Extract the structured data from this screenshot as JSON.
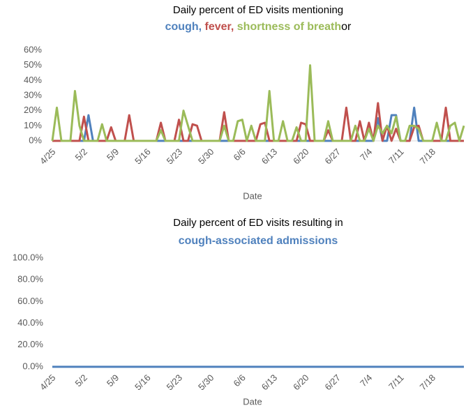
{
  "chart_data": [
    {
      "type": "line",
      "title": "Daily percent of ED visits mentioning",
      "legend_separators": [
        ",",
        ",",
        "or"
      ],
      "x_label": "Date",
      "categories": [
        "4/25",
        null,
        null,
        null,
        null,
        null,
        null,
        "5/2",
        null,
        null,
        null,
        null,
        null,
        null,
        "5/9",
        null,
        null,
        null,
        null,
        null,
        null,
        "5/16",
        null,
        null,
        null,
        null,
        null,
        null,
        "5/23",
        null,
        null,
        null,
        null,
        null,
        null,
        "5/30",
        null,
        null,
        null,
        null,
        null,
        null,
        "6/6",
        null,
        null,
        null,
        null,
        null,
        null,
        "6/13",
        null,
        null,
        null,
        null,
        null,
        null,
        "6/20",
        null,
        null,
        null,
        null,
        null,
        null,
        "6/27",
        null,
        null,
        null,
        null,
        null,
        null,
        "7/4",
        null,
        null,
        null,
        null,
        null,
        null,
        "7/11",
        null,
        null,
        null,
        null,
        null,
        null,
        "7/18",
        null,
        null,
        null,
        null,
        null,
        null,
        null
      ],
      "ylim": [
        0,
        60
      ],
      "yticks": [
        {
          "value": 0,
          "label": "0%"
        },
        {
          "value": 10,
          "label": "10%"
        },
        {
          "value": 20,
          "label": "20%"
        },
        {
          "value": 30,
          "label": "30%"
        },
        {
          "value": 40,
          "label": "40%"
        },
        {
          "value": 50,
          "label": "50%"
        },
        {
          "value": 60,
          "label": "60%"
        }
      ],
      "series": [
        {
          "name": "cough",
          "color": "#4f81bd",
          "values": [
            0,
            0,
            0,
            0,
            0,
            0,
            0,
            0,
            17,
            0,
            0,
            0,
            0,
            0,
            0,
            0,
            0,
            0,
            0,
            0,
            0,
            0,
            0,
            0,
            0,
            0,
            0,
            0,
            0,
            0,
            0,
            0,
            0,
            0,
            0,
            0,
            0,
            0,
            0,
            0,
            0,
            0,
            0,
            0,
            0,
            0,
            0,
            0,
            0,
            0,
            0,
            0,
            0,
            0,
            0,
            0,
            0,
            0,
            0,
            0,
            0,
            0,
            0,
            0,
            0,
            0,
            0,
            0,
            0,
            0,
            0,
            0,
            15,
            0,
            0,
            17,
            17,
            0,
            0,
            0,
            22,
            0,
            0,
            0,
            0,
            0,
            0,
            0,
            0,
            0,
            0,
            0
          ]
        },
        {
          "name": "fever",
          "color": "#c0504d",
          "values": [
            0,
            0,
            0,
            0,
            0,
            0,
            0,
            16,
            0,
            0,
            0,
            0,
            0,
            9,
            0,
            0,
            0,
            17,
            0,
            0,
            0,
            0,
            0,
            0,
            12,
            0,
            0,
            0,
            14,
            0,
            0,
            11,
            10,
            0,
            0,
            0,
            0,
            0,
            19,
            0,
            0,
            0,
            0,
            0,
            0,
            0,
            11,
            12,
            0,
            0,
            0,
            0,
            0,
            0,
            0,
            12,
            11,
            0,
            0,
            0,
            0,
            7,
            0,
            0,
            0,
            22,
            0,
            0,
            13,
            0,
            12,
            0,
            25,
            0,
            10,
            0,
            8,
            0,
            0,
            0,
            9,
            10,
            0,
            0,
            0,
            0,
            0,
            22,
            0,
            0,
            0,
            0
          ]
        },
        {
          "name": "shortness of breath",
          "color": "#9bbb59",
          "values": [
            0,
            22,
            0,
            0,
            0,
            33,
            10,
            0,
            0,
            0,
            0,
            11,
            0,
            0,
            0,
            0,
            0,
            0,
            0,
            0,
            0,
            0,
            0,
            0,
            7,
            0,
            0,
            0,
            0,
            20,
            10,
            0,
            0,
            0,
            0,
            0,
            0,
            0,
            10,
            0,
            0,
            13,
            14,
            0,
            10,
            0,
            0,
            0,
            33,
            0,
            0,
            13,
            0,
            0,
            9,
            0,
            0,
            50,
            0,
            0,
            0,
            13,
            0,
            0,
            0,
            0,
            0,
            10,
            0,
            0,
            8,
            0,
            10,
            5,
            10,
            5,
            16,
            0,
            0,
            10,
            10,
            8,
            0,
            0,
            0,
            12,
            0,
            0,
            10,
            12,
            0,
            10
          ]
        }
      ]
    },
    {
      "type": "line",
      "title": "Daily percent of ED visits resulting in",
      "x_label": "Date",
      "categories": [
        "4/25",
        null,
        null,
        null,
        null,
        null,
        null,
        "5/2",
        null,
        null,
        null,
        null,
        null,
        null,
        "5/9",
        null,
        null,
        null,
        null,
        null,
        null,
        "5/16",
        null,
        null,
        null,
        null,
        null,
        null,
        "5/23",
        null,
        null,
        null,
        null,
        null,
        null,
        "5/30",
        null,
        null,
        null,
        null,
        null,
        null,
        "6/6",
        null,
        null,
        null,
        null,
        null,
        null,
        "6/13",
        null,
        null,
        null,
        null,
        null,
        null,
        "6/20",
        null,
        null,
        null,
        null,
        null,
        null,
        "6/27",
        null,
        null,
        null,
        null,
        null,
        null,
        "7/4",
        null,
        null,
        null,
        null,
        null,
        null,
        "7/11",
        null,
        null,
        null,
        null,
        null,
        null,
        "7/18",
        null,
        null,
        null,
        null,
        null,
        null,
        null
      ],
      "ylim": [
        0,
        100
      ],
      "yticks": [
        {
          "value": 0,
          "label": "0.0%"
        },
        {
          "value": 20,
          "label": "20.0%"
        },
        {
          "value": 40,
          "label": "40.0%"
        },
        {
          "value": 60,
          "label": "60.0%"
        },
        {
          "value": 80,
          "label": "80.0%"
        },
        {
          "value": 100,
          "label": "100.0%"
        }
      ],
      "series": [
        {
          "name": "cough-associated admissions",
          "color": "#4f81bd",
          "values": [
            0,
            0,
            0,
            0,
            0,
            0,
            0,
            0,
            0,
            0,
            0,
            0,
            0,
            0,
            0,
            0,
            0,
            0,
            0,
            0,
            0,
            0,
            0,
            0,
            0,
            0,
            0,
            0,
            0,
            0,
            0,
            0,
            0,
            0,
            0,
            0,
            0,
            0,
            0,
            0,
            0,
            0,
            0,
            0,
            0,
            0,
            0,
            0,
            0,
            0,
            0,
            0,
            0,
            0,
            0,
            0,
            0,
            0,
            0,
            0,
            0,
            0,
            0,
            0,
            0,
            0,
            0,
            0,
            0,
            0,
            0,
            0,
            0,
            0,
            0,
            0,
            0,
            0,
            0,
            0,
            0,
            0,
            0,
            0,
            0,
            0,
            0,
            0,
            0,
            0,
            0,
            0
          ]
        }
      ]
    }
  ]
}
